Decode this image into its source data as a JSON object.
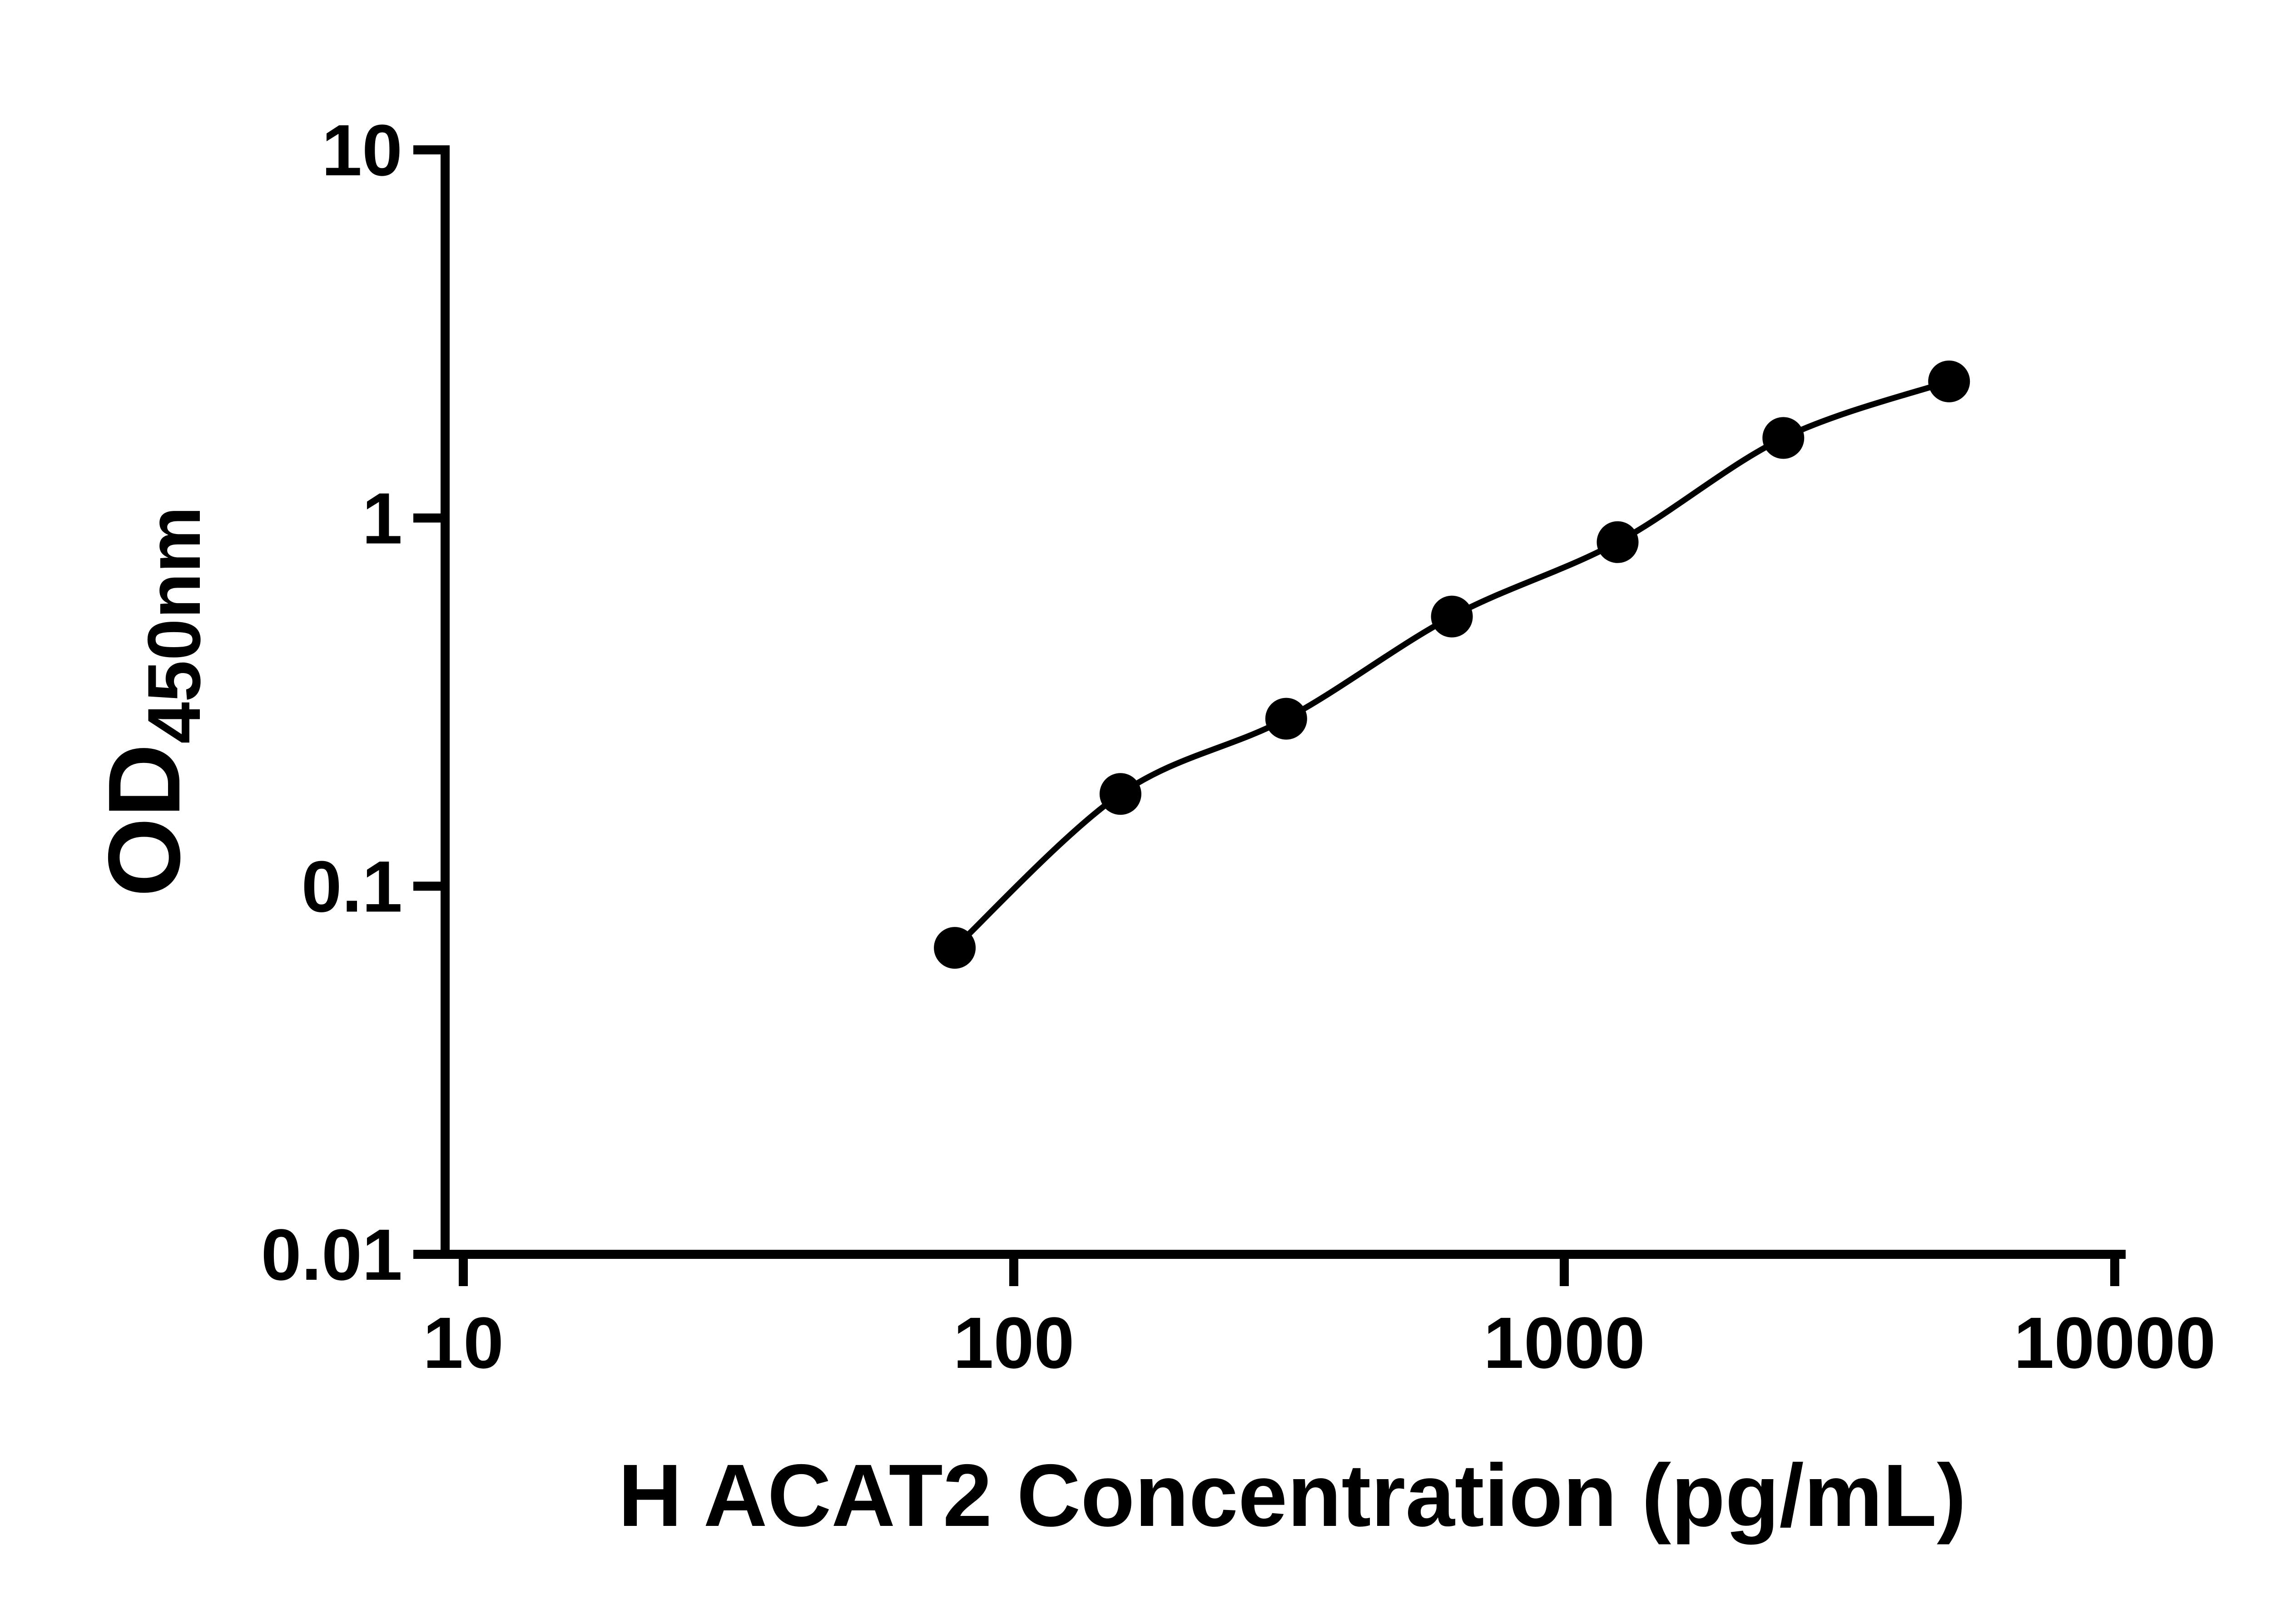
{
  "chart_data": {
    "type": "scatter",
    "title": "",
    "xlabel": "H ACAT2 Concentration (pg/mL)",
    "ylabel_main": "OD",
    "ylabel_sub": "450nm",
    "x_scale": "log10",
    "y_scale": "log10",
    "xlim": [
      10,
      10000
    ],
    "ylim": [
      0.01,
      10
    ],
    "x_ticks": [
      {
        "value": 10,
        "label": "10"
      },
      {
        "value": 100,
        "label": "100"
      },
      {
        "value": 1000,
        "label": "1000"
      },
      {
        "value": 10000,
        "label": "10000"
      }
    ],
    "y_ticks": [
      {
        "value": 10,
        "label": "10"
      },
      {
        "value": 1,
        "label": "1"
      },
      {
        "value": 0.1,
        "label": "0.1"
      },
      {
        "value": 0.01,
        "label": "0.01"
      }
    ],
    "series": [
      {
        "marker": "filled-circle",
        "points": [
          {
            "x": 78.125,
            "y": 0.068
          },
          {
            "x": 156.25,
            "y": 0.178
          },
          {
            "x": 312.5,
            "y": 0.285
          },
          {
            "x": 625,
            "y": 0.54
          },
          {
            "x": 1250,
            "y": 0.86
          },
          {
            "x": 2500,
            "y": 1.65
          },
          {
            "x": 5000,
            "y": 2.35
          }
        ]
      }
    ],
    "curve": "smooth-through-points",
    "grid": false,
    "legend": "none",
    "colors": {
      "axis": "#000000",
      "line": "#000000",
      "marker": "#000000",
      "background": "#ffffff"
    }
  }
}
